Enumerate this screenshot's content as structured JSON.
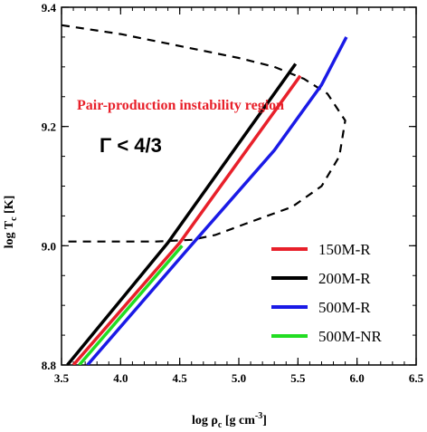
{
  "chart_data": {
    "type": "line",
    "xlabel_main": "log ρ",
    "xlabel_sub": "c",
    "xlabel_unit": " [g cm",
    "xlabel_sup": "-3",
    "xlabel_close": "]",
    "ylabel_main": "log T",
    "ylabel_sub": "c",
    "ylabel_unit": " [K]",
    "xlim": [
      3.5,
      6.5
    ],
    "ylim": [
      8.8,
      9.4
    ],
    "xticks": [
      "3.5",
      "4.0",
      "4.5",
      "5.0",
      "5.5",
      "6.0",
      "6.5"
    ],
    "yticks": [
      "8.8",
      "9.0",
      "9.2",
      "9.4"
    ],
    "annotations": {
      "region_label": "Pair-production instability region",
      "gamma_label": "Γ < 4/3"
    },
    "colors": {
      "150M-R": "#e8202a",
      "200M-R": "#000000",
      "500M-R": "#1a1ae6",
      "500M-NR": "#22dd22",
      "boundary": "#000000"
    },
    "series": [
      {
        "name": "150M-R",
        "color": "#e8202a",
        "x": [
          3.6,
          4.5,
          5.52
        ],
        "y": [
          8.8,
          9.005,
          9.285
        ]
      },
      {
        "name": "200M-R",
        "color": "#000000",
        "x": [
          3.55,
          4.4,
          5.48
        ],
        "y": [
          8.8,
          9.005,
          9.305
        ]
      },
      {
        "name": "500M-R",
        "color": "#1a1ae6",
        "x": [
          3.72,
          4.55,
          5.3,
          5.7,
          5.91
        ],
        "y": [
          8.8,
          8.99,
          9.16,
          9.27,
          9.35
        ]
      },
      {
        "name": "500M-NR",
        "color": "#22dd22",
        "x": [
          3.65,
          4.52
        ],
        "y": [
          8.8,
          9.0
        ]
      }
    ],
    "boundary": {
      "name": "",
      "style": "dashed",
      "x": [
        3.5,
        4.0,
        4.5,
        5.0,
        5.3,
        5.55,
        5.75,
        5.9,
        5.85,
        5.7,
        5.45,
        5.1,
        4.8,
        4.6,
        4.3,
        3.8,
        3.5
      ],
      "y": [
        9.37,
        9.355,
        9.335,
        9.315,
        9.3,
        9.28,
        9.255,
        9.21,
        9.15,
        9.1,
        9.065,
        9.04,
        9.018,
        9.01,
        9.007,
        9.007,
        9.007
      ]
    }
  }
}
